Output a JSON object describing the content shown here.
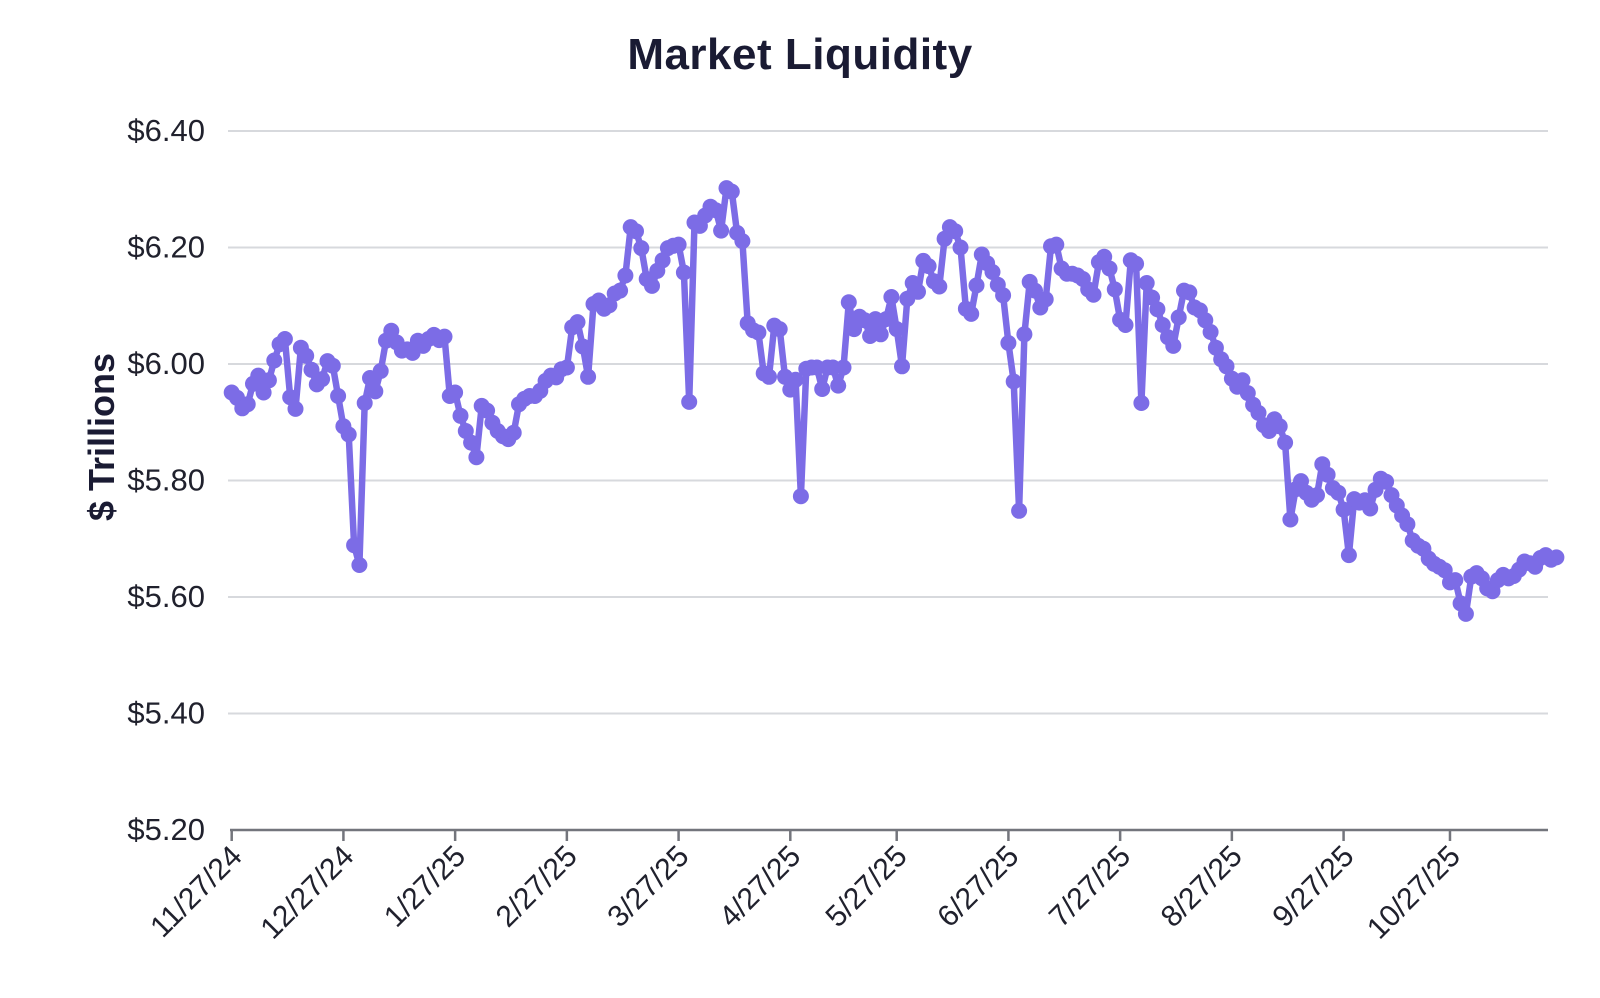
{
  "page": {
    "background": "#ffffff"
  },
  "chart_data": {
    "type": "line",
    "title": "Market Liquidity",
    "xlabel": "",
    "ylabel": "$ Trillions",
    "ylim": [
      5.2,
      6.4
    ],
    "grid": true,
    "legend": "none",
    "y_tick_labels": [
      "$6.40",
      "$6.20",
      "$6.00",
      "$5.80",
      "$5.60",
      "$5.40",
      "$5.20"
    ],
    "y_tick_values": [
      6.4,
      6.2,
      6.0,
      5.8,
      5.6,
      5.4,
      5.2
    ],
    "x_tick_labels": [
      "11/27/24",
      "12/27/24",
      "1/27/25",
      "2/27/25",
      "3/27/25",
      "4/27/25",
      "5/27/25",
      "6/27/25",
      "7/27/25",
      "8/27/25",
      "9/27/25",
      "10/27/25"
    ],
    "x_tick_indices": [
      0,
      21,
      42,
      63,
      84,
      105,
      125,
      146,
      167,
      188,
      209,
      229
    ],
    "frequency": "business-daily",
    "series": [
      {
        "name": "Market Liquidity",
        "color": "#7C6CE6",
        "marker": "circle",
        "values": [
          5.951,
          5.942,
          5.924,
          5.931,
          5.966,
          5.98,
          5.951,
          5.972,
          6.006,
          6.034,
          6.043,
          5.943,
          5.923,
          6.028,
          6.014,
          5.99,
          5.965,
          5.974,
          6.005,
          5.997,
          5.945,
          5.893,
          5.879,
          5.689,
          5.655,
          5.933,
          5.976,
          5.953,
          5.988,
          6.04,
          6.057,
          6.037,
          6.023,
          6.025,
          6.019,
          6.04,
          6.031,
          6.043,
          6.05,
          6.041,
          6.047,
          5.945,
          5.951,
          5.911,
          5.885,
          5.865,
          5.84,
          5.928,
          5.92,
          5.899,
          5.885,
          5.876,
          5.871,
          5.882,
          5.931,
          5.94,
          5.945,
          5.945,
          5.954,
          5.971,
          5.98,
          5.977,
          5.991,
          5.994,
          6.063,
          6.072,
          6.03,
          5.978,
          6.103,
          6.109,
          6.095,
          6.101,
          6.121,
          6.126,
          6.152,
          6.235,
          6.228,
          6.199,
          6.146,
          6.134,
          6.16,
          6.178,
          6.199,
          6.203,
          6.205,
          6.157,
          5.935,
          6.243,
          6.237,
          6.255,
          6.27,
          6.264,
          6.229,
          6.302,
          6.296,
          6.225,
          6.211,
          6.07,
          6.058,
          6.054,
          5.984,
          5.978,
          6.066,
          6.06,
          5.978,
          5.956,
          5.973,
          5.773,
          5.992,
          5.994,
          5.994,
          5.957,
          5.994,
          5.994,
          5.963,
          5.994,
          6.106,
          6.06,
          6.081,
          6.075,
          6.048,
          6.077,
          6.051,
          6.077,
          6.115,
          6.06,
          5.996,
          6.112,
          6.139,
          6.124,
          6.177,
          6.168,
          6.142,
          6.133,
          6.215,
          6.235,
          6.228,
          6.2,
          6.095,
          6.086,
          6.135,
          6.188,
          6.173,
          6.158,
          6.136,
          6.118,
          6.036,
          5.97,
          5.748,
          6.051,
          6.141,
          6.126,
          6.097,
          6.111,
          6.202,
          6.205,
          6.164,
          6.155,
          6.155,
          6.152,
          6.146,
          6.128,
          6.119,
          6.175,
          6.184,
          6.164,
          6.128,
          6.076,
          6.067,
          6.178,
          6.172,
          5.933,
          6.139,
          6.114,
          6.094,
          6.067,
          6.046,
          6.031,
          6.08,
          6.126,
          6.123,
          6.097,
          6.092,
          6.075,
          6.055,
          6.028,
          6.008,
          5.996,
          5.975,
          5.961,
          5.972,
          5.95,
          5.93,
          5.916,
          5.895,
          5.885,
          5.905,
          5.893,
          5.865,
          5.733,
          5.785,
          5.799,
          5.779,
          5.767,
          5.775,
          5.828,
          5.81,
          5.787,
          5.779,
          5.75,
          5.672,
          5.768,
          5.762,
          5.766,
          5.752,
          5.784,
          5.803,
          5.798,
          5.775,
          5.757,
          5.74,
          5.725,
          5.697,
          5.688,
          5.683,
          5.666,
          5.657,
          5.652,
          5.646,
          5.625,
          5.629,
          5.589,
          5.571,
          5.635,
          5.641,
          5.632,
          5.615,
          5.61,
          5.629,
          5.638,
          5.632,
          5.636,
          5.647,
          5.661,
          5.658,
          5.652,
          5.667,
          5.672,
          5.664,
          5.668
        ]
      }
    ]
  },
  "style": {
    "title_color": "#1A1B33",
    "axis_title_color": "#1A1B33",
    "tick_label_color": "#20212D",
    "gridline_color": "#D7D9DD",
    "axis_line_color": "#73757C",
    "line_color": "#7C6CE6",
    "marker_color": "#7C6CE6"
  }
}
